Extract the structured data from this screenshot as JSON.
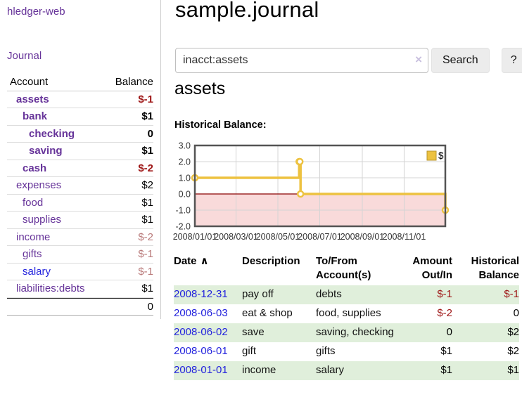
{
  "colors": {
    "link-purple": "#663399",
    "link-blue": "#2323dd",
    "negative-strong": "#9e1616",
    "negative-muted": "#b87878",
    "row-stripe-green": "#e0efdb"
  },
  "sidebar": {
    "app_title": "hledger-web",
    "journal_label": "Journal",
    "accounts_table": {
      "col_account": "Account",
      "col_balance": "Balance",
      "rows": [
        {
          "account": "assets",
          "balance": "$-1"
        },
        {
          "account": "bank",
          "balance": "$1"
        },
        {
          "account": "checking",
          "balance": "0"
        },
        {
          "account": "saving",
          "balance": "$1"
        },
        {
          "account": "cash",
          "balance": "$-2"
        },
        {
          "account": "expenses",
          "balance": "$2"
        },
        {
          "account": "food",
          "balance": "$1"
        },
        {
          "account": "supplies",
          "balance": "$1"
        },
        {
          "account": "income",
          "balance": "$-2"
        },
        {
          "account": "gifts",
          "balance": "$-1"
        },
        {
          "account": "salary",
          "balance": "$-1"
        },
        {
          "account": "liabilities:debts",
          "balance": "$1"
        }
      ],
      "total": "0"
    }
  },
  "header": {
    "title": "sample.journal"
  },
  "search": {
    "query": "inacct:assets",
    "clear_icon": "×",
    "search_label": "Search",
    "help_label": "?"
  },
  "account_page": {
    "heading": "assets",
    "chart_label": "Historical Balance:"
  },
  "chart_data": {
    "type": "line",
    "title": "Historical Balance:",
    "step": true,
    "series": [
      {
        "name": "$",
        "points": [
          [
            "2008-01-01",
            1
          ],
          [
            "2008-06-01",
            2
          ],
          [
            "2008-06-02",
            2
          ],
          [
            "2008-06-03",
            0
          ],
          [
            "2008-12-31",
            -1
          ]
        ]
      }
    ],
    "x_range": [
      "2008-01-01",
      "2008-12-31"
    ],
    "ylim": [
      -2,
      3
    ],
    "yticks": [
      3.0,
      2.0,
      1.0,
      0.0,
      -1.0,
      -2.0
    ],
    "xticks": [
      "2008/01/01",
      "2008/03/01",
      "2008/05/01",
      "2008/07/01",
      "2008/09/01",
      "2008/11/01"
    ],
    "legend": {
      "label": "$",
      "position": "top-right"
    },
    "grid": true,
    "line_color": "#edc240",
    "marker_fill": "#ffffff",
    "negative_fill": "#f9dada",
    "zero_line_color": "#8b0000",
    "grid_color": "#d4d4d4",
    "border_color": "#545454",
    "legend_box_border": "#b8962e"
  },
  "register_table": {
    "columns": {
      "date": "Date",
      "sort_arrow": "∧",
      "description": "Description",
      "tofrom": "To/From Account(s)",
      "amount": "Amount Out/In",
      "balance": "Historical Balance"
    },
    "rows": [
      {
        "date": "2008-12-31",
        "description": "pay off",
        "tofrom": "debts",
        "amount": "$-1",
        "balance": "$-1"
      },
      {
        "date": "2008-06-03",
        "description": "eat & shop",
        "tofrom": "food, supplies",
        "amount": "$-2",
        "balance": "0"
      },
      {
        "date": "2008-06-02",
        "description": "save",
        "tofrom": "saving, checking",
        "amount": "0",
        "balance": "$2"
      },
      {
        "date": "2008-06-01",
        "description": "gift",
        "tofrom": "gifts",
        "amount": "$1",
        "balance": "$2"
      },
      {
        "date": "2008-01-01",
        "description": "income",
        "tofrom": "salary",
        "amount": "$1",
        "balance": "$1"
      }
    ]
  }
}
